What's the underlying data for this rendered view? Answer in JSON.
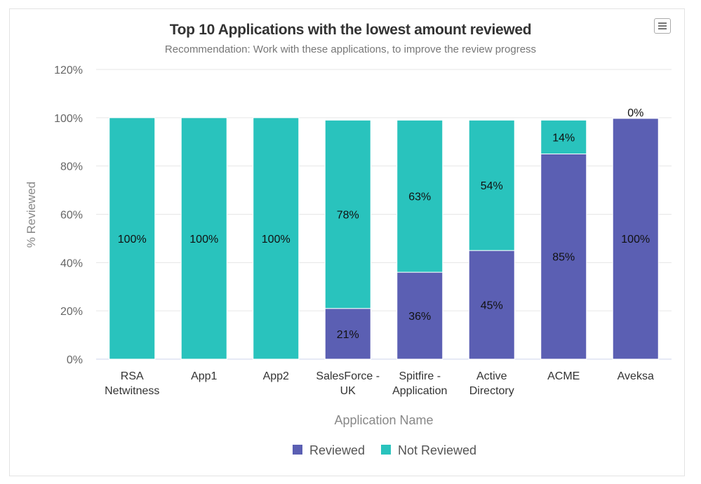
{
  "chart_data": {
    "type": "bar",
    "stacked": true,
    "title": "Top 10 Applications with the lowest amount reviewed",
    "subtitle": "Recommendation: Work with these applications, to improve the review progress",
    "xlabel": "Application Name",
    "ylabel": "% Reviewed",
    "ylim": [
      0,
      120
    ],
    "yticks": [
      "0%",
      "20%",
      "40%",
      "60%",
      "80%",
      "100%",
      "120%"
    ],
    "ytick_values": [
      0,
      20,
      40,
      60,
      80,
      100,
      120
    ],
    "categories": [
      [
        "RSA",
        "Netwitness"
      ],
      [
        "App1"
      ],
      [
        "App2"
      ],
      [
        "SalesForce -",
        "UK"
      ],
      [
        "Spitfire -",
        "Application"
      ],
      [
        "Active",
        "Directory"
      ],
      [
        "ACME"
      ],
      [
        "Aveksa"
      ]
    ],
    "series": [
      {
        "name": "Reviewed",
        "color": "#5b5fb3",
        "values": [
          0,
          0,
          0,
          21,
          36,
          45,
          85,
          100
        ]
      },
      {
        "name": "Not Reviewed",
        "color": "#29c3bd",
        "values": [
          100,
          100,
          100,
          78,
          63,
          54,
          14,
          0
        ]
      }
    ],
    "grid": true,
    "legend": "bottom-center"
  }
}
